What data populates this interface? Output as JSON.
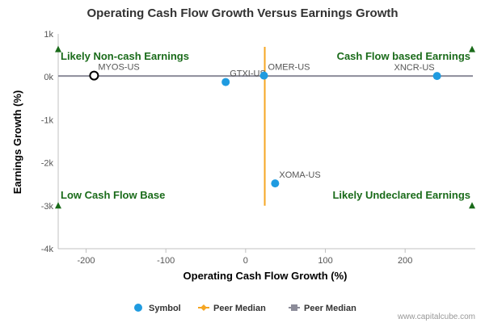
{
  "chart_data": {
    "type": "scatter",
    "title": "Operating Cash Flow Growth Versus Earnings Growth",
    "xlabel": "Operating Cash Flow Growth (%)",
    "ylabel": "Earnings Growth (%)",
    "xlim": [
      -235,
      288
    ],
    "ylim": [
      -4000,
      1000
    ],
    "x_ticks": [
      -200,
      -100,
      0,
      100,
      200
    ],
    "x_tick_labels": [
      "-200",
      "-100",
      "0",
      "100",
      "200"
    ],
    "y_ticks": [
      1000,
      0,
      -1000,
      -2000,
      -3000,
      -4000
    ],
    "y_tick_labels": [
      "1k",
      "0k",
      "-1k",
      "-2k",
      "-3k",
      "-4k"
    ],
    "grid": false,
    "points": [
      {
        "label": "MYOS-US",
        "x": -190,
        "y": 30,
        "highlight": true
      },
      {
        "label": "GTXI-US",
        "x": -25,
        "y": -120,
        "highlight": false
      },
      {
        "label": "OMER-US",
        "x": 23,
        "y": 30,
        "highlight": false
      },
      {
        "label": "XNCR-US",
        "x": 240,
        "y": 20,
        "highlight": false
      },
      {
        "label": "XOMA-US",
        "x": 37,
        "y": -2480,
        "highlight": false
      }
    ],
    "peer_median": {
      "x": 24,
      "y": 20
    },
    "quadrant_labels": {
      "top_left": "Likely Non-cash Earnings",
      "top_right": "Cash Flow based Earnings",
      "bottom_left": "Low Cash Flow Base",
      "bottom_right": "Likely Undeclared Earnings"
    },
    "legend": [
      {
        "name": "Symbol",
        "color": "#1f9be0",
        "marker": "circle"
      },
      {
        "name": "Peer Median",
        "color": "#f5a623",
        "marker": "line-diamond"
      },
      {
        "name": "Peer Median",
        "color": "#8c8c99",
        "marker": "line-square"
      }
    ],
    "legend_position": "bottom",
    "colors": {
      "point": "#1f9be0",
      "highlight_stroke": "#000000",
      "v_median": "#f5a623",
      "h_median": "#8c8c99",
      "quadrant": "#1a6b1a"
    }
  },
  "credit": "www.capitalcube.com"
}
